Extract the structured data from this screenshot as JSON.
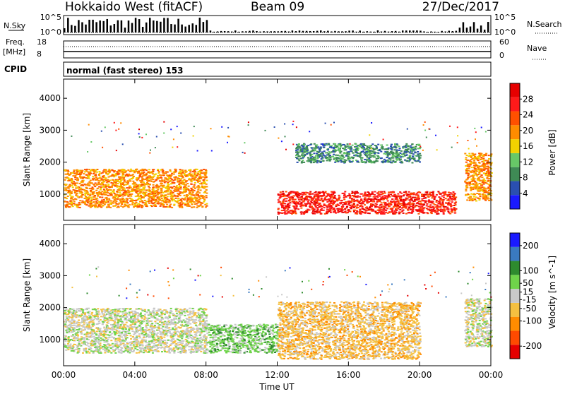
{
  "header": {
    "title": "Hokkaido West (fitACF)",
    "beam": "Beam 09",
    "date": "27/Dec/2017"
  },
  "status_panels": {
    "nsky_label": "N.Sky",
    "nsearch_label": "N.Search",
    "noise_ticks_left": [
      "10^5",
      "10^0"
    ],
    "noise_ticks_right": [
      "10^5",
      "10^0"
    ],
    "freq_label": "Freq.",
    "freq_unit": "[MHz]",
    "freq_ticks": [
      "18",
      "8"
    ],
    "nave_label": "Nave",
    "nave_ticks": [
      "60",
      "0"
    ],
    "cpid_label": "CPID",
    "cpid_text": "normal (fast stereo) 153"
  },
  "x_axis": {
    "label": "Time UT",
    "ticks": [
      "00:00",
      "04:00",
      "08:00",
      "12:00",
      "16:00",
      "20:00",
      "00:00"
    ]
  },
  "colors": {
    "power_scale": [
      "#1a1aff",
      "#2a4fb0",
      "#3f8a55",
      "#67c867",
      "#f2d200",
      "#ff8c00",
      "#ff5000",
      "#ff1a1a",
      "#e60000"
    ],
    "velocity_scale": [
      "#e60000",
      "#ff4a00",
      "#ff8c00",
      "#f5c040",
      "#c8c8c8",
      "#6fd44a",
      "#2e8b2e",
      "#3a7ac0",
      "#1a1aff"
    ]
  },
  "chart_data": [
    {
      "type": "heatmap",
      "title": "",
      "xlabel": "Time UT",
      "ylabel": "Slant Range [km]",
      "x_range_hours": [
        0,
        24
      ],
      "ylim": [
        180,
        4600
      ],
      "y_ticks": [
        1000,
        2000,
        3000,
        4000
      ],
      "colorbar": {
        "label": "Power [dB]",
        "ticks": [
          4,
          8,
          12,
          16,
          20,
          24,
          28
        ],
        "range": [
          0,
          32
        ]
      },
      "features": [
        {
          "name": "near-range echo band",
          "t_start": 0.0,
          "t_end": 8.0,
          "range_km": [
            600,
            1800
          ],
          "value_db": 20
        },
        {
          "name": "strong afternoon band",
          "t_start": 12.0,
          "t_end": 22.0,
          "range_km": [
            400,
            1100
          ],
          "value_db": 28
        },
        {
          "name": "far-range echoes",
          "t_start": 13.0,
          "t_end": 20.0,
          "range_km": [
            2000,
            2600
          ],
          "value_db": 8
        },
        {
          "name": "late-day echoes",
          "t_start": 22.5,
          "t_end": 24.0,
          "range_km": [
            800,
            2300
          ],
          "value_db": 18
        }
      ]
    },
    {
      "type": "heatmap",
      "title": "",
      "xlabel": "Time UT",
      "ylabel": "Slant Range [km]",
      "x_range_hours": [
        0,
        24
      ],
      "ylim": [
        180,
        4600
      ],
      "y_ticks": [
        1000,
        2000,
        3000,
        4000
      ],
      "colorbar": {
        "label": "Velocity [m s^-1]",
        "ticks": [
          200,
          100,
          50,
          15,
          -15,
          -50,
          -100,
          -200
        ],
        "range": [
          -250,
          250
        ]
      },
      "features": [
        {
          "name": "ground scatter",
          "t_start": 0.0,
          "t_end": 8.0,
          "range_km": [
            600,
            2000
          ],
          "value_ms": 0
        },
        {
          "name": "positive velocity region",
          "t_start": 8.0,
          "t_end": 12.0,
          "range_km": [
            600,
            1500
          ],
          "value_ms": 60
        },
        {
          "name": "negative velocity region",
          "t_start": 12.0,
          "t_end": 20.0,
          "range_km": [
            400,
            2200
          ],
          "value_ms": -80
        },
        {
          "name": "late ground scatter",
          "t_start": 22.5,
          "t_end": 24.0,
          "range_km": [
            800,
            2300
          ],
          "value_ms": 0
        }
      ]
    }
  ]
}
